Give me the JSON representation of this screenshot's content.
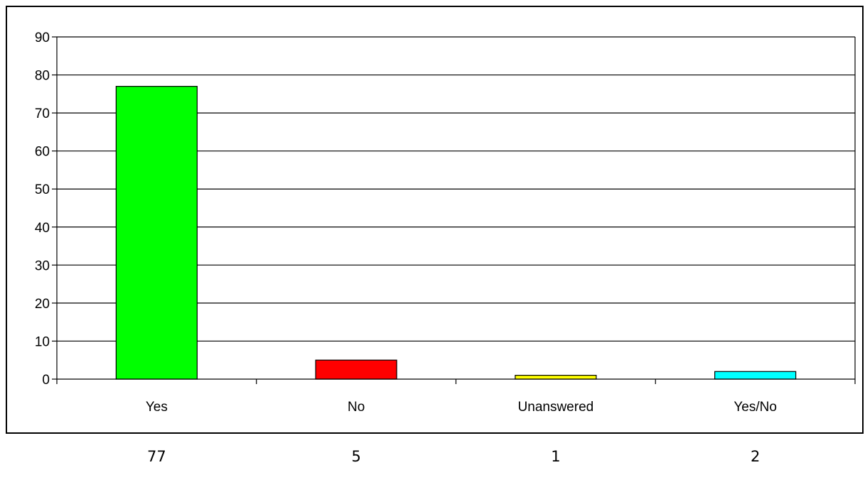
{
  "chart_data": {
    "type": "bar",
    "categories": [
      "Yes",
      "No",
      "Unanswered",
      "Yes/No"
    ],
    "values": [
      77,
      5,
      1,
      2
    ],
    "colors": [
      "#00ff00",
      "#ff0000",
      "#ffff00",
      "#00ffff"
    ],
    "ylim": [
      0,
      90
    ],
    "yticks": [
      0,
      10,
      20,
      30,
      40,
      50,
      60,
      70,
      80,
      90
    ],
    "grid": true,
    "legend": "none",
    "value_labels": [
      "77",
      "5",
      "1",
      "2"
    ]
  }
}
